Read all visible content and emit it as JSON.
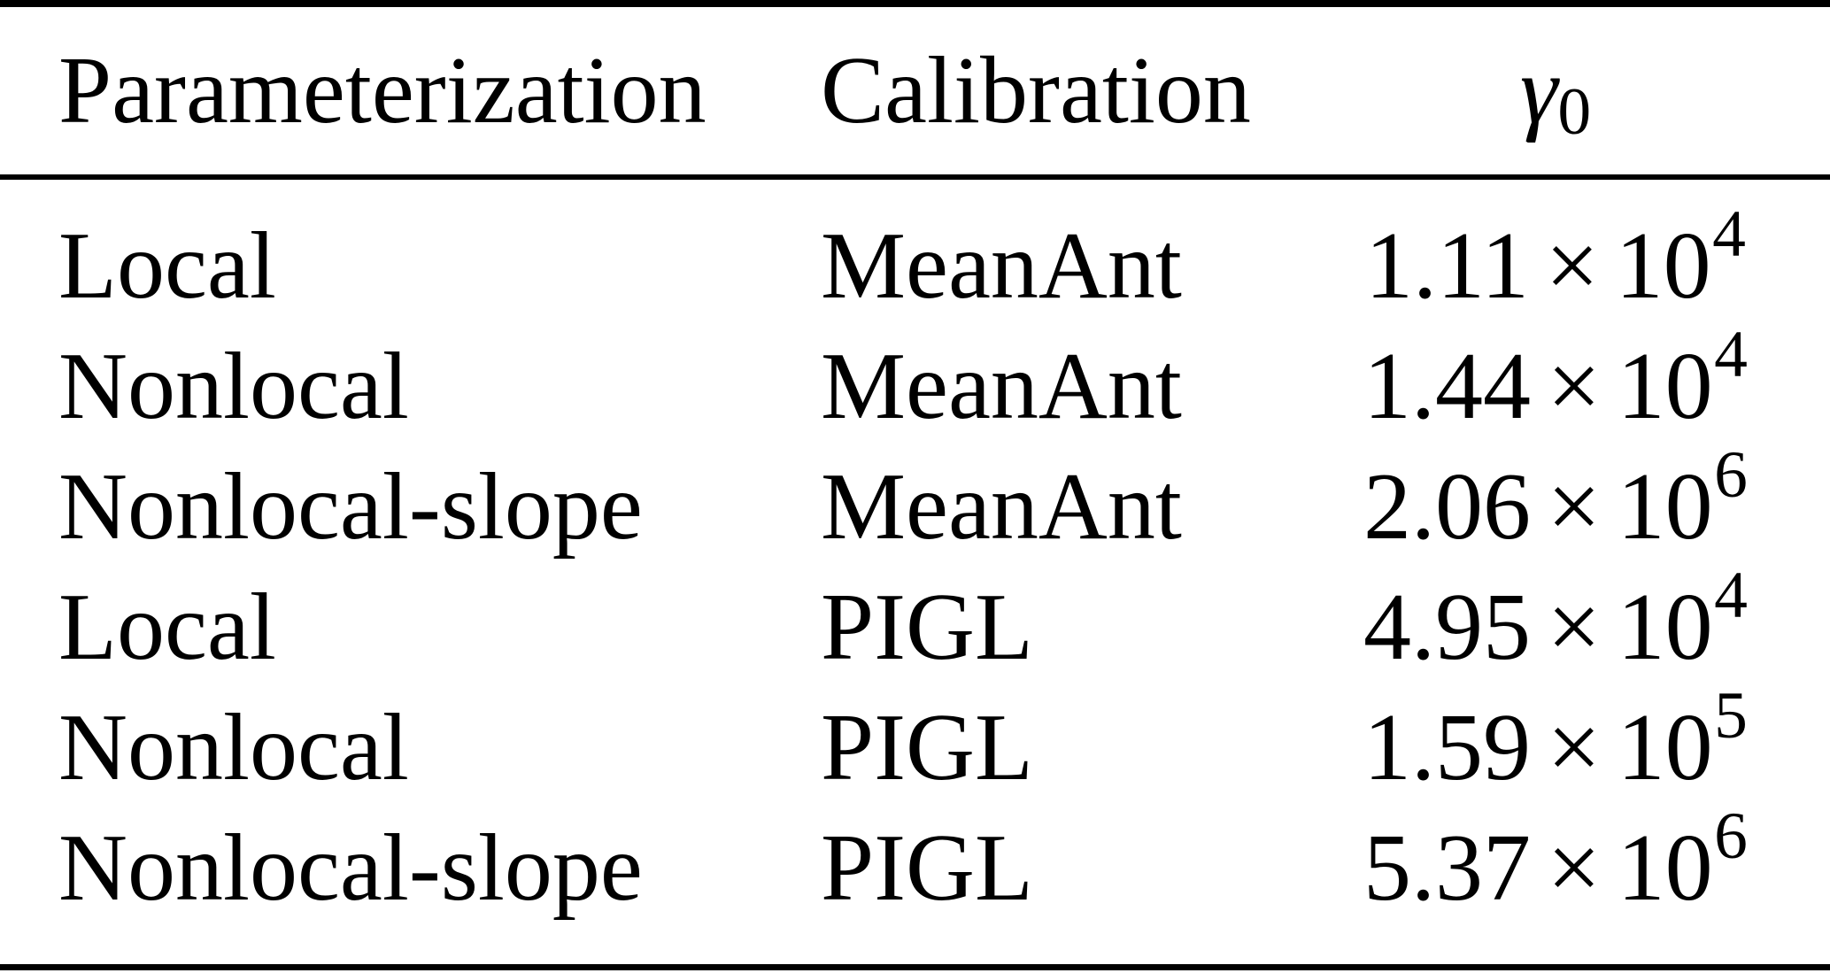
{
  "table": {
    "header": {
      "col1": "Parameterization",
      "col2": "Calibration",
      "col3_symbol": "γ",
      "col3_subscript": "0"
    },
    "notation": {
      "times": "×",
      "base": "10"
    },
    "rows": [
      {
        "parameterization": "Local",
        "calibration": "MeanAnt",
        "gamma0_mantissa": "1.11",
        "gamma0_exponent": "4"
      },
      {
        "parameterization": "Nonlocal",
        "calibration": "MeanAnt",
        "gamma0_mantissa": "1.44",
        "gamma0_exponent": "4"
      },
      {
        "parameterization": "Nonlocal-slope",
        "calibration": "MeanAnt",
        "gamma0_mantissa": "2.06",
        "gamma0_exponent": "6"
      },
      {
        "parameterization": "Local",
        "calibration": "PIGL",
        "gamma0_mantissa": "4.95",
        "gamma0_exponent": "4"
      },
      {
        "parameterization": "Nonlocal",
        "calibration": "PIGL",
        "gamma0_mantissa": "1.59",
        "gamma0_exponent": "5"
      },
      {
        "parameterization": "Nonlocal-slope",
        "calibration": "PIGL",
        "gamma0_mantissa": "5.37",
        "gamma0_exponent": "6"
      }
    ],
    "colors": {
      "background": "#ffffff",
      "text": "#000000",
      "rule": "#000000"
    }
  },
  "chart_data": {
    "type": "table",
    "columns": [
      "Parameterization",
      "Calibration",
      "γ0"
    ],
    "rows": [
      [
        "Local",
        "MeanAnt",
        11100
      ],
      [
        "Nonlocal",
        "MeanAnt",
        14400
      ],
      [
        "Nonlocal-slope",
        "MeanAnt",
        2060000
      ],
      [
        "Local",
        "PIGL",
        49500
      ],
      [
        "Nonlocal",
        "PIGL",
        159000
      ],
      [
        "Nonlocal-slope",
        "PIGL",
        5370000
      ]
    ],
    "value_notation": [
      "1.11 × 10^4",
      "1.44 × 10^4",
      "2.06 × 10^6",
      "4.95 × 10^4",
      "1.59 × 10^5",
      "5.37 × 10^6"
    ]
  }
}
